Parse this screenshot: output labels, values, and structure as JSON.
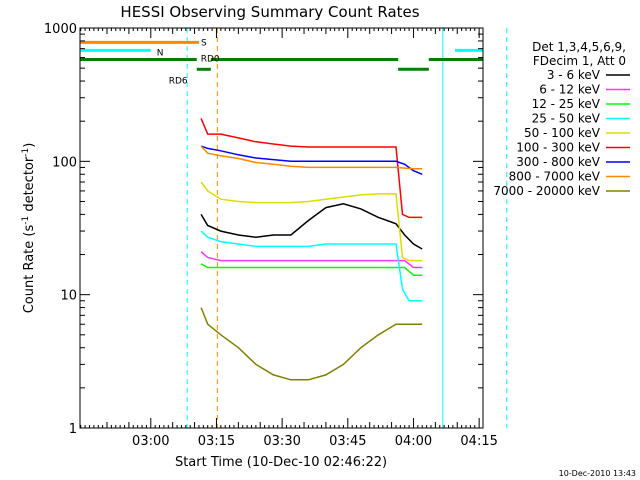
{
  "chart_data": {
    "type": "line",
    "title": "HESSI Observing Summary Count Rates",
    "xlabel": "Start Time (10-Dec-10 02:46:22)",
    "ylabel_main": "Count Rate (s",
    "ylabel_sup1": "-1",
    "ylabel_mid": " detector",
    "ylabel_sup2": "-1",
    "ylabel_end": ")",
    "yscale": "log",
    "ylim": [
      1,
      1000
    ],
    "xlim_minutes": [
      0,
      90
    ],
    "x_ticks": [
      {
        "m": 14,
        "label": "03:00"
      },
      {
        "m": 29,
        "label": "03:15"
      },
      {
        "m": 44,
        "label": "03:30"
      },
      {
        "m": 59,
        "label": "03:45"
      },
      {
        "m": 74,
        "label": "04:00"
      },
      {
        "m": 89,
        "label": "04:15"
      }
    ],
    "y_ticks": [
      {
        "v": 1,
        "label": "1"
      },
      {
        "v": 10,
        "label": "10"
      },
      {
        "v": 100,
        "label": "100"
      },
      {
        "v": 1000,
        "label": "1000"
      }
    ],
    "legend_header": [
      "Det 1,3,4,5,6,9,",
      "FDecim 1, Att 0"
    ],
    "series": [
      {
        "name": "3 - 6 keV",
        "color": "#000000",
        "values": [
          [
            25.5,
            40
          ],
          [
            27,
            33
          ],
          [
            30,
            30
          ],
          [
            34,
            28
          ],
          [
            38,
            27
          ],
          [
            42,
            28
          ],
          [
            46,
            28
          ],
          [
            50,
            36
          ],
          [
            54,
            45
          ],
          [
            58,
            48
          ],
          [
            62,
            44
          ],
          [
            66,
            38
          ],
          [
            70,
            34
          ],
          [
            72,
            28
          ],
          [
            74,
            24
          ],
          [
            76,
            22
          ]
        ]
      },
      {
        "name": "6 - 12 keV",
        "color": "#ff33ff",
        "values": [
          [
            25.5,
            21
          ],
          [
            27,
            19
          ],
          [
            30,
            18
          ],
          [
            36,
            18
          ],
          [
            40,
            18
          ],
          [
            44,
            18
          ],
          [
            48,
            18
          ],
          [
            52,
            18
          ],
          [
            56,
            18
          ],
          [
            60,
            18
          ],
          [
            64,
            18
          ],
          [
            68,
            18
          ],
          [
            70,
            18
          ],
          [
            72,
            18
          ],
          [
            74,
            16
          ],
          [
            76,
            16
          ]
        ]
      },
      {
        "name": "12 - 25 keV",
        "color": "#00ff00",
        "values": [
          [
            25.5,
            17
          ],
          [
            27,
            16
          ],
          [
            30,
            16
          ],
          [
            36,
            16
          ],
          [
            40,
            16
          ],
          [
            44,
            16
          ],
          [
            48,
            16
          ],
          [
            52,
            16
          ],
          [
            56,
            16
          ],
          [
            60,
            16
          ],
          [
            64,
            16
          ],
          [
            68,
            16
          ],
          [
            70,
            16
          ],
          [
            72,
            16
          ],
          [
            74,
            14
          ],
          [
            76,
            14
          ]
        ]
      },
      {
        "name": "25 - 50 keV",
        "color": "#00ffff",
        "values": [
          [
            25.5,
            30
          ],
          [
            27,
            27
          ],
          [
            30,
            25
          ],
          [
            34,
            24
          ],
          [
            38,
            23
          ],
          [
            42,
            23
          ],
          [
            46,
            23
          ],
          [
            50,
            23
          ],
          [
            54,
            24
          ],
          [
            58,
            24
          ],
          [
            62,
            24
          ],
          [
            66,
            24
          ],
          [
            70,
            24
          ],
          [
            71.5,
            11
          ],
          [
            73,
            9
          ],
          [
            76,
            9
          ]
        ]
      },
      {
        "name": "50 - 100 keV",
        "color": "#dddd00",
        "values": [
          [
            25.5,
            70
          ],
          [
            27,
            60
          ],
          [
            30,
            52
          ],
          [
            34,
            50
          ],
          [
            38,
            49
          ],
          [
            42,
            49
          ],
          [
            46,
            49
          ],
          [
            50,
            50
          ],
          [
            54,
            52
          ],
          [
            58,
            54
          ],
          [
            62,
            56
          ],
          [
            66,
            57
          ],
          [
            70,
            57
          ],
          [
            71.5,
            19
          ],
          [
            73,
            18
          ],
          [
            76,
            18
          ]
        ]
      },
      {
        "name": "100 - 300 keV",
        "color": "#ff0000",
        "values": [
          [
            25.5,
            210
          ],
          [
            27,
            160
          ],
          [
            30,
            160
          ],
          [
            34,
            150
          ],
          [
            38,
            140
          ],
          [
            42,
            135
          ],
          [
            46,
            130
          ],
          [
            50,
            128
          ],
          [
            54,
            128
          ],
          [
            58,
            128
          ],
          [
            62,
            128
          ],
          [
            66,
            128
          ],
          [
            70,
            128
          ],
          [
            71.5,
            40
          ],
          [
            73,
            38
          ],
          [
            76,
            38
          ]
        ]
      },
      {
        "name": "300 - 800 keV",
        "color": "#0000ff",
        "values": [
          [
            25.5,
            130
          ],
          [
            27,
            125
          ],
          [
            30,
            120
          ],
          [
            34,
            112
          ],
          [
            38,
            106
          ],
          [
            42,
            103
          ],
          [
            46,
            100
          ],
          [
            50,
            100
          ],
          [
            54,
            100
          ],
          [
            58,
            100
          ],
          [
            62,
            100
          ],
          [
            66,
            100
          ],
          [
            70,
            100
          ],
          [
            72,
            95
          ],
          [
            74,
            85
          ],
          [
            76,
            80
          ]
        ]
      },
      {
        "name": "800 - 7000 keV",
        "color": "#ff8800",
        "values": [
          [
            25.5,
            130
          ],
          [
            27,
            115
          ],
          [
            30,
            110
          ],
          [
            34,
            105
          ],
          [
            38,
            98
          ],
          [
            42,
            95
          ],
          [
            46,
            92
          ],
          [
            50,
            90
          ],
          [
            54,
            90
          ],
          [
            58,
            90
          ],
          [
            62,
            90
          ],
          [
            66,
            90
          ],
          [
            70,
            90
          ],
          [
            72,
            89
          ],
          [
            74,
            88
          ],
          [
            76,
            88
          ]
        ]
      },
      {
        "name": "7000 - 20000 keV",
        "color": "#808000",
        "values": [
          [
            25.5,
            8
          ],
          [
            27,
            6
          ],
          [
            30,
            5
          ],
          [
            34,
            4
          ],
          [
            38,
            3
          ],
          [
            42,
            2.5
          ],
          [
            46,
            2.3
          ],
          [
            50,
            2.3
          ],
          [
            54,
            2.5
          ],
          [
            58,
            3
          ],
          [
            62,
            4
          ],
          [
            66,
            5
          ],
          [
            70,
            6
          ],
          [
            72,
            6
          ],
          [
            74,
            6
          ],
          [
            76,
            6
          ]
        ]
      }
    ],
    "status_bars": [
      {
        "label": "S",
        "color": "#ff8800",
        "y": 780,
        "segments": [
          [
            -7,
            25
          ]
        ]
      },
      {
        "label": "N",
        "color": "#00ffff",
        "y": 680,
        "segments": [
          [
            -7,
            14
          ],
          [
            83.5,
            98
          ]
        ]
      },
      {
        "label": "RD0",
        "color": "#008000",
        "y": 580,
        "segments": [
          [
            -7,
            24.5
          ],
          [
            27.7,
            70.5
          ],
          [
            77.5,
            98
          ]
        ]
      },
      {
        "label": "RD6",
        "color": "#008000",
        "y": 490,
        "segments": [
          [
            24.5,
            27.7
          ],
          [
            70.5,
            77.5
          ]
        ]
      }
    ],
    "vlines": [
      {
        "m": 22.3,
        "color": "#00ffff",
        "style": "dashed"
      },
      {
        "m": 80.7,
        "color": "#00ffff",
        "style": "solid"
      },
      {
        "m": 29.2,
        "color": "#ff8800",
        "style": "dashed"
      },
      {
        "m": 95.3,
        "color": "#00ffff",
        "style": "dashed"
      }
    ],
    "grid": false,
    "legend_position": "top-right"
  },
  "footer": {
    "timestamp": "10-Dec-2010 13:43"
  }
}
